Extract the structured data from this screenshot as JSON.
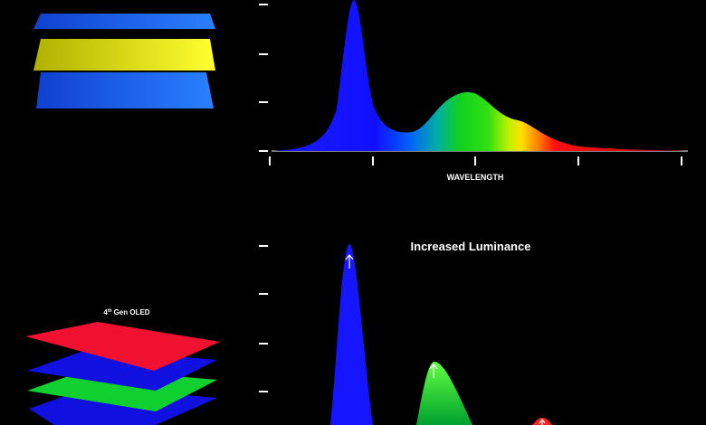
{
  "top_panel": {
    "x_axis_label": "WAVELENGTH"
  },
  "bottom_panel": {
    "title": "Increased Luminance",
    "stack_label": {
      "number": "4",
      "suffix": "th",
      "rest": "Gen OLED"
    }
  }
}
